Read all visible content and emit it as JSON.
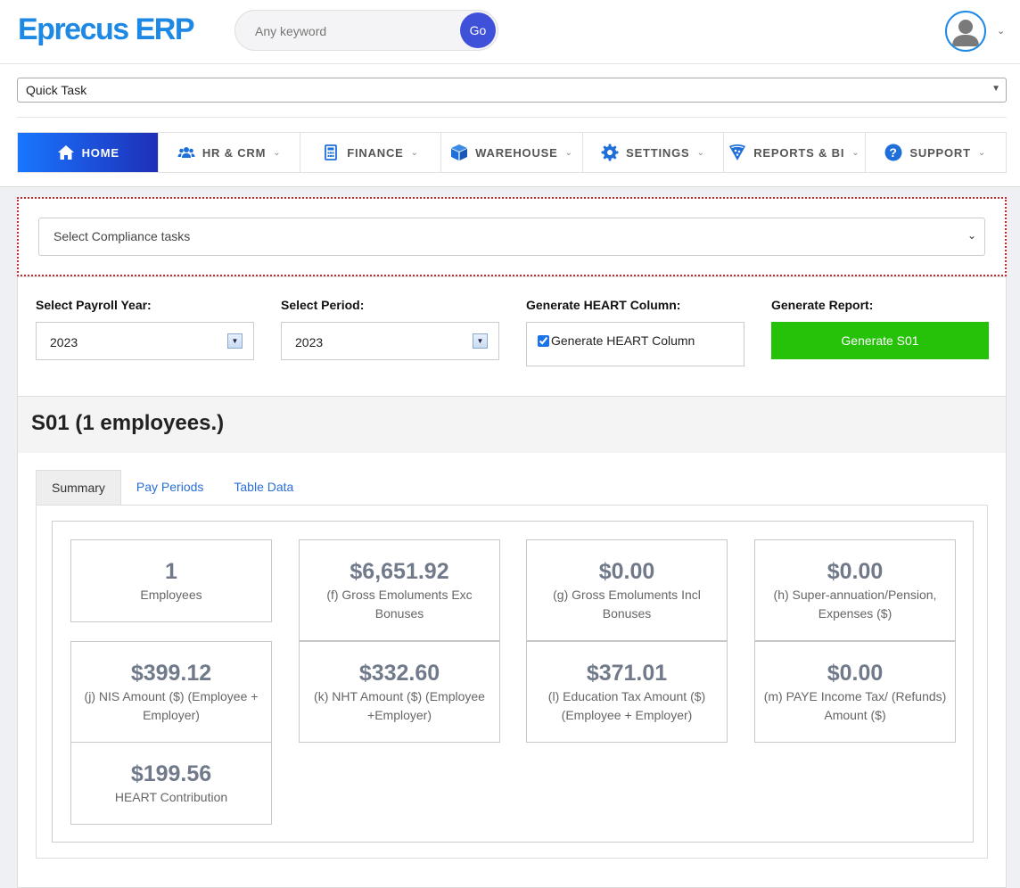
{
  "header": {
    "logo": "Eprecus ERP",
    "search_placeholder": "Any keyword",
    "go_label": "Go"
  },
  "quick_task": {
    "value": "Quick Task"
  },
  "nav": [
    {
      "label": "HOME",
      "icon": "home-icon",
      "active": true
    },
    {
      "label": "HR & CRM",
      "icon": "users-icon"
    },
    {
      "label": "FINANCE",
      "icon": "calculator-icon"
    },
    {
      "label": "WAREHOUSE",
      "icon": "box-icon"
    },
    {
      "label": "SETTINGS",
      "icon": "gear-icon"
    },
    {
      "label": "REPORTS & BI",
      "icon": "reports-icon"
    },
    {
      "label": "SUPPORT",
      "icon": "question-icon"
    }
  ],
  "compliance": {
    "placeholder": "Select Compliance tasks"
  },
  "form": {
    "payroll_year_label": "Select Payroll Year:",
    "payroll_year_value": "2023",
    "period_label": "Select Period:",
    "period_value": "2023",
    "heart_label": "Generate HEART Column:",
    "heart_checkbox_label": "Generate HEART Column",
    "heart_checked": true,
    "report_label": "Generate Report:",
    "generate_button": "Generate S01"
  },
  "report": {
    "title": "S01 (1 employees.)",
    "tabs": [
      "Summary",
      "Pay Periods",
      "Table Data"
    ],
    "active_tab": "Summary",
    "cards": [
      {
        "value": "1",
        "label": "Employees"
      },
      {
        "value": "$6,651.92",
        "label": "(f) Gross Emoluments Exc Bonuses"
      },
      {
        "value": "$0.00",
        "label": "(g) Gross Emoluments Incl Bonuses"
      },
      {
        "value": "$0.00",
        "label": "(h) Super-annuation/Pension, Expenses ($)"
      },
      {
        "value": "$399.12",
        "label": "(j) NIS Amount ($) (Employee + Employer)"
      },
      {
        "value": "$332.60",
        "label": "(k) NHT Amount ($) (Employee +Employer)"
      },
      {
        "value": "$371.01",
        "label": "(l) Education Tax Amount ($) (Employee + Employer)"
      },
      {
        "value": "$0.00",
        "label": "(m) PAYE Income Tax/ (Refunds) Amount ($)"
      },
      {
        "value": "$199.56",
        "label": "HEART Contribution"
      }
    ]
  },
  "colors": {
    "brand": "#1e88e5",
    "nav_active_start": "#1976ff",
    "nav_active_end": "#1e2fb8",
    "generate_button": "#26c20a",
    "compliance_border": "#d9232a"
  }
}
